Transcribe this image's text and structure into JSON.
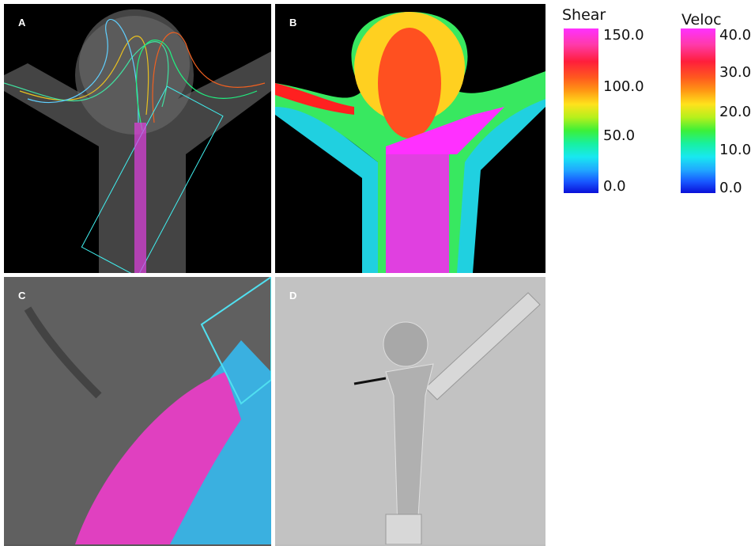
{
  "panels": [
    {
      "label": "A"
    },
    {
      "label": "B"
    },
    {
      "label": "C"
    },
    {
      "label": "D"
    }
  ],
  "colorbars": [
    {
      "title": "Shear",
      "ticks": [
        "150.0",
        "100.0",
        "50.0",
        "0.0"
      ]
    },
    {
      "title": "Veloc",
      "ticks": [
        "40.0",
        "30.0",
        "20.0",
        "10.0",
        "0.0"
      ]
    }
  ]
}
